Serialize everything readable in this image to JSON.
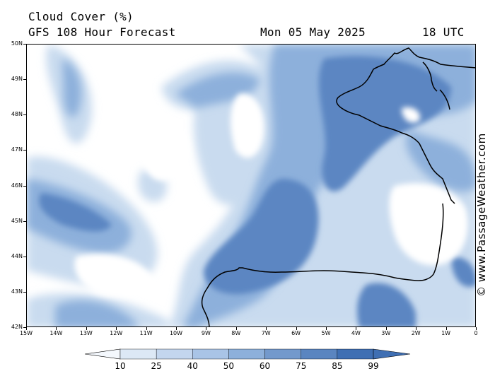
{
  "header": {
    "title": "Cloud Cover (%)",
    "subtitle": "GFS 108 Hour Forecast",
    "date": "Mon 05 May 2025",
    "time": "18 UTC"
  },
  "watermark": "© www.PassageWeather.com",
  "map": {
    "latitudes": [
      "50N",
      "49N",
      "48N",
      "47N",
      "46N",
      "45N",
      "44N",
      "43N",
      "42N"
    ],
    "longitudes": [
      "15W",
      "14W",
      "13W",
      "12W",
      "11W",
      "10W",
      "9W",
      "8W",
      "7W",
      "6W",
      "5W",
      "4W",
      "3W",
      "2W",
      "1W",
      "0"
    ],
    "extent": {
      "lon": [
        -15,
        0
      ],
      "lat": [
        42,
        50
      ]
    }
  },
  "legend": {
    "labels": [
      "10",
      "25",
      "40",
      "50",
      "60",
      "75",
      "85",
      "99"
    ],
    "colors": [
      "#f4f8fd",
      "#dce8f5",
      "#c3d6ee",
      "#a9c4e6",
      "#8db0db",
      "#7399cc",
      "#5a85c0",
      "#3f6fb3"
    ]
  },
  "colors": {
    "cloud_0": "#ffffff",
    "cloud_10": "#e8f0f9",
    "cloud_25": "#c9dbef",
    "cloud_40": "#a7c3e4",
    "cloud_60": "#7ea3d4",
    "cloud_75": "#5b86c2",
    "cloud_85": "#4573b6",
    "coastline": "#000000"
  }
}
